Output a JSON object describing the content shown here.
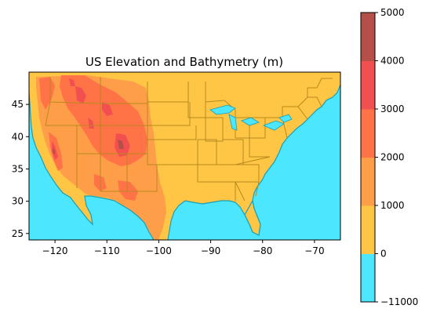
{
  "chart_data": {
    "type": "heatmap",
    "title": "US Elevation and Bathymetry (m)",
    "xlabel": "",
    "ylabel": "",
    "x_ticks": [
      -120,
      -110,
      -100,
      -90,
      -80,
      -70
    ],
    "x_tick_labels": [
      "−120",
      "−110",
      "−100",
      "−90",
      "−80",
      "−70"
    ],
    "y_ticks": [
      25,
      30,
      35,
      40,
      45
    ],
    "y_tick_labels": [
      "25",
      "30",
      "35",
      "40",
      "45"
    ],
    "xlim": [
      -125,
      -65
    ],
    "ylim": [
      24,
      50
    ],
    "grid": false,
    "colorbar": {
      "levels": [
        -11000,
        0,
        1000,
        2000,
        3000,
        4000,
        5000
      ],
      "tick_labels": [
        "−11000",
        "0",
        "1000",
        "2000",
        "3000",
        "4000",
        "5000"
      ],
      "colors": [
        "#4de6ff",
        "#ffc645",
        "#ff9e48",
        "#ff7347",
        "#f25050",
        "#b55049"
      ]
    },
    "ocean_color": "#4de6ff",
    "lowland_color": "#ffc645",
    "border_color": "#b78a1e",
    "coast_color": "#1a9fb5"
  }
}
